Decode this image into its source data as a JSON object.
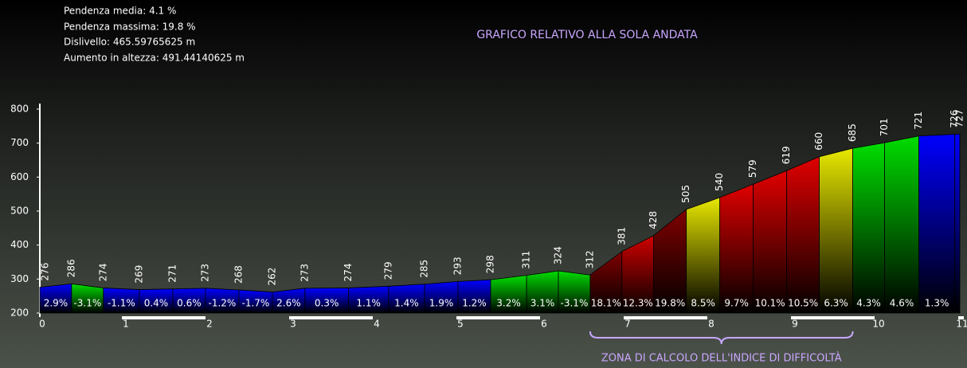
{
  "chart_data": {
    "type": "elevation-profile",
    "title": "GRAFICO RELATIVO ALLA SOLA ANDATA",
    "stats": [
      "Pendenza media: 4.1 %",
      "Pendenza massima: 19.8 %",
      "Dislivello: 465.59765625 m",
      "Aumento in altezza: 491.44140625 m"
    ],
    "annotation": "ZONA DI CALCOLO DELL'INDICE DI DIFFICOLTÀ",
    "x": [
      0,
      0.38,
      0.76,
      1.19,
      1.59,
      1.98,
      2.38,
      2.78,
      3.17,
      3.69,
      4.17,
      4.6,
      5.0,
      5.39,
      5.82,
      6.2,
      6.58,
      6.96,
      7.34,
      7.73,
      8.13,
      8.53,
      8.93,
      9.32,
      9.72,
      10.1,
      10.51,
      10.94,
      11.0
    ],
    "values": [
      276,
      286,
      274,
      269,
      271,
      273,
      268,
      262,
      273,
      274,
      279,
      285,
      293,
      298,
      311,
      324,
      312,
      381,
      428,
      505,
      540,
      579,
      619,
      660,
      685,
      701,
      721,
      726,
      727
    ],
    "gradients": {
      "values": [
        2.9,
        -3.1,
        -1.1,
        0.4,
        0.6,
        -1.2,
        -1.7,
        2.6,
        0.3,
        1.1,
        1.4,
        1.9,
        1.2,
        3.2,
        3.1,
        -3.1,
        18.1,
        12.3,
        19.8,
        8.5,
        9.7,
        10.1,
        10.5,
        6.3,
        4.3,
        4.6,
        1.3,
        null
      ],
      "value_labels": [
        "2.9%",
        "-3.1%",
        "-1.1%",
        "0.4%",
        "0.6%",
        "-1.2%",
        "-1.7%",
        "2.6%",
        "0.3%",
        "1.1%",
        "1.4%",
        "1.9%",
        "1.2%",
        "3.2%",
        "3.1%",
        "-3.1%",
        "18.1%",
        "12.3%",
        "19.8%",
        "8.5%",
        "9.7%",
        "10.1%",
        "10.5%",
        "6.3%",
        "4.3%",
        "4.6%",
        "1.3%",
        null
      ]
    },
    "segment_colors": [
      "#0000ff",
      "#00dd00",
      "#0000ff",
      "#0000ff",
      "#0000ff",
      "#0000ff",
      "#0000ff",
      "#0000ff",
      "#0000ff",
      "#0000ff",
      "#0000ff",
      "#0000ff",
      "#0000ff",
      "#00dd00",
      "#00dd00",
      "#00dd00",
      "#800000",
      "#d00000",
      "#800000",
      "#e8e800",
      "#e00000",
      "#e00000",
      "#e00000",
      "#e8e800",
      "#00dd00",
      "#00dd00",
      "#0000ff",
      "#0000ff"
    ],
    "xlim": [
      0,
      11
    ],
    "xticks": [
      0,
      1,
      2,
      3,
      4,
      5,
      6,
      7,
      8,
      9,
      10,
      11
    ],
    "ylim": [
      200,
      800
    ],
    "yticks": [
      200,
      300,
      400,
      500,
      600,
      700,
      800
    ]
  }
}
